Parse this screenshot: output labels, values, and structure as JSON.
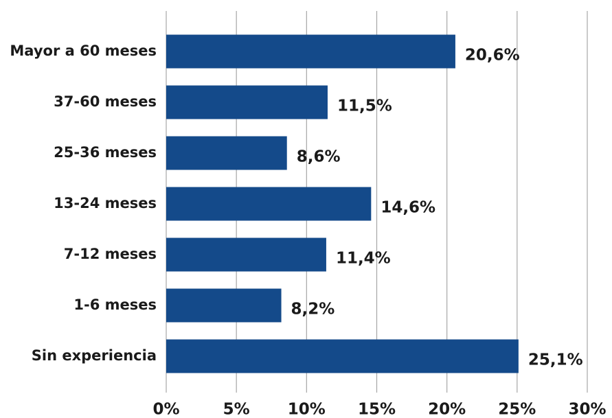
{
  "chart_data": {
    "type": "bar",
    "orientation": "horizontal",
    "categories": [
      "Mayor a 60 meses",
      "37-60 meses",
      "25-36 meses",
      "13-24 meses",
      "7-12 meses",
      "1-6 meses",
      "Sin experiencia"
    ],
    "values": [
      20.6,
      11.5,
      8.6,
      14.6,
      11.4,
      8.2,
      25.1
    ],
    "value_labels": [
      "20,6%",
      "11,5%",
      "8,6%",
      "14,6%",
      "11,4%",
      "8,2%",
      "25,1%"
    ],
    "x_ticks": [
      0,
      5,
      10,
      15,
      20,
      25,
      30
    ],
    "x_tick_labels": [
      "0%",
      "5%",
      "10%",
      "15%",
      "20%",
      "25%",
      "30%"
    ],
    "xlim": [
      0,
      30
    ],
    "grid": true,
    "legend": "none",
    "bar_color": "#144a8a",
    "title": "",
    "xlabel": "",
    "ylabel": ""
  }
}
